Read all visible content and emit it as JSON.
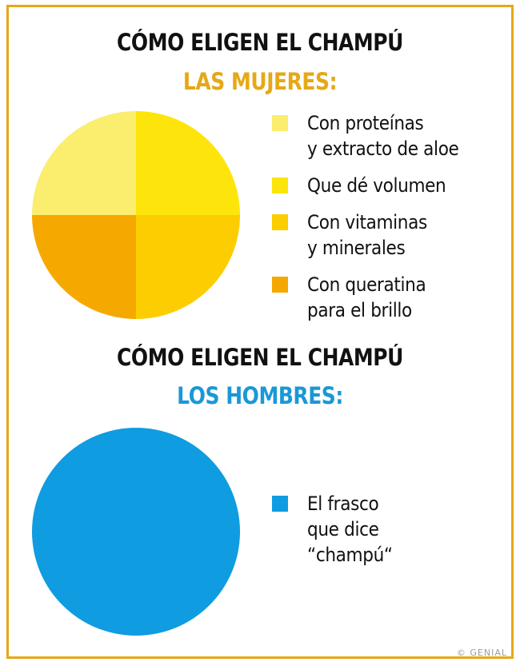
{
  "chart_data": [
    {
      "type": "pie",
      "title": "CÓMO ELIGEN EL CHAMPÚ",
      "subtitle": "LAS MUJERES:",
      "subtitle_color": "#e6a817",
      "slices": [
        {
          "label": "Con proteínas\ny extracto de aloe",
          "value": 25,
          "color": "#fbed6e"
        },
        {
          "label": "Que dé volumen",
          "value": 25,
          "color": "#fde50b"
        },
        {
          "label": "Con vitaminas\ny minerales",
          "value": 25,
          "color": "#fccd00"
        },
        {
          "label": "Con queratina\npara el brillo",
          "value": 25,
          "color": "#f5a900"
        }
      ]
    },
    {
      "type": "pie",
      "title": "CÓMO ELIGEN EL CHAMPÚ",
      "subtitle": "LOS HOMBRES:",
      "subtitle_color": "#1a98d6",
      "slices": [
        {
          "label": "El frasco\nque dice\n“champú“",
          "value": 100,
          "color": "#0f9ce0"
        }
      ]
    }
  ],
  "watermark": "© GENIAL",
  "colors": {
    "frame": "#e6a817",
    "text": "#111111"
  }
}
